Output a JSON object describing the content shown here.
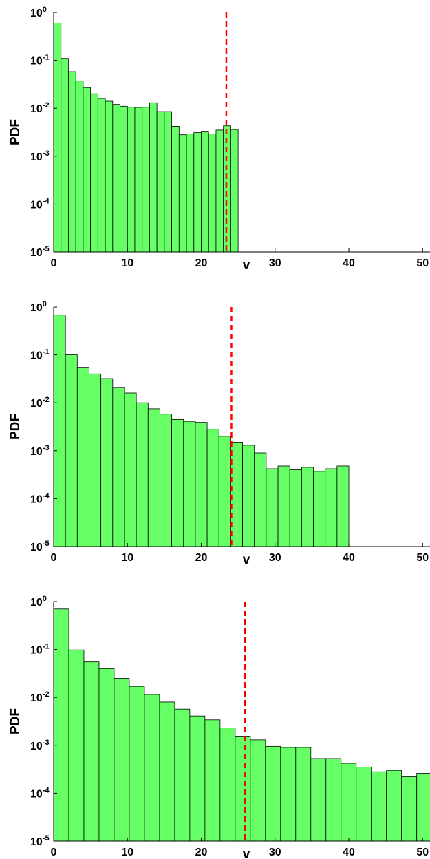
{
  "chart_data": [
    {
      "type": "bar",
      "subtype": "histogram",
      "title": "",
      "xlabel": "v",
      "ylabel": "PDF",
      "xlim": [
        0,
        51
      ],
      "ylim": [
        1e-05,
        1
      ],
      "yscale": "log",
      "x_ticks": [
        "0",
        "10",
        "20",
        "30",
        "40",
        "50"
      ],
      "y_ticks": [
        {
          "base": "10",
          "exp": "0"
        },
        {
          "base": "10",
          "exp": "-1"
        },
        {
          "base": "10",
          "exp": "-2"
        },
        {
          "base": "10",
          "exp": "-3"
        },
        {
          "base": "10",
          "exp": "-4"
        },
        {
          "base": "10",
          "exp": "-5"
        }
      ],
      "bar_color": "#66ff66",
      "bin_width": 1,
      "bin_edges_start": 0,
      "values": [
        0.6,
        0.11,
        0.058,
        0.037,
        0.027,
        0.02,
        0.016,
        0.014,
        0.012,
        0.011,
        0.0105,
        0.0104,
        0.0105,
        0.013,
        0.0085,
        0.0085,
        0.0042,
        0.0028,
        0.0029,
        0.0031,
        0.0032,
        0.0029,
        0.0035,
        0.0043,
        0.0036
      ],
      "threshold_x": 23.4,
      "threshold_color": "#ff0000",
      "grid": false,
      "legend": "none"
    },
    {
      "type": "bar",
      "subtype": "histogram",
      "title": "",
      "xlabel": "v",
      "ylabel": "PDF",
      "xlim": [
        0,
        51
      ],
      "ylim": [
        1e-05,
        1
      ],
      "yscale": "log",
      "x_ticks": [
        "0",
        "10",
        "20",
        "30",
        "40",
        "50"
      ],
      "y_ticks": [
        {
          "base": "10",
          "exp": "0"
        },
        {
          "base": "10",
          "exp": "-1"
        },
        {
          "base": "10",
          "exp": "-2"
        },
        {
          "base": "10",
          "exp": "-3"
        },
        {
          "base": "10",
          "exp": "-4"
        },
        {
          "base": "10",
          "exp": "-5"
        }
      ],
      "bar_color": "#66ff66",
      "bin_width": 1.6,
      "bin_edges_start": 0,
      "values": [
        0.68,
        0.1,
        0.055,
        0.04,
        0.032,
        0.021,
        0.016,
        0.01,
        0.0075,
        0.0058,
        0.0045,
        0.0041,
        0.0039,
        0.0028,
        0.002,
        0.0015,
        0.0013,
        0.0009,
        0.00042,
        0.00048,
        0.0004,
        0.00045,
        0.00037,
        0.00042,
        0.00048
      ],
      "threshold_x": 24.1,
      "threshold_color": "#ff0000",
      "grid": false,
      "legend": "none"
    },
    {
      "type": "bar",
      "subtype": "histogram",
      "title": "",
      "xlabel": "v",
      "ylabel": "PDF",
      "xlim": [
        0,
        51
      ],
      "ylim": [
        1e-05,
        1
      ],
      "yscale": "log",
      "x_ticks": [
        "0",
        "10",
        "20",
        "30",
        "40",
        "50"
      ],
      "y_ticks": [
        {
          "base": "10",
          "exp": "0"
        },
        {
          "base": "10",
          "exp": "-1"
        },
        {
          "base": "10",
          "exp": "-2"
        },
        {
          "base": "10",
          "exp": "-3"
        },
        {
          "base": "10",
          "exp": "-4"
        },
        {
          "base": "10",
          "exp": "-5"
        }
      ],
      "bar_color": "#66ff66",
      "bin_width": 2.05,
      "bin_edges_start": 0,
      "values": [
        0.7,
        0.098,
        0.055,
        0.04,
        0.025,
        0.017,
        0.0115,
        0.008,
        0.0057,
        0.0041,
        0.0034,
        0.0023,
        0.0015,
        0.0013,
        0.00095,
        0.0009,
        0.0009,
        0.00053,
        0.00053,
        0.00042,
        0.00035,
        0.00028,
        0.0003,
        0.00022,
        0.00026
      ],
      "threshold_x": 25.9,
      "threshold_color": "#ff0000",
      "grid": false,
      "legend": "none"
    }
  ]
}
